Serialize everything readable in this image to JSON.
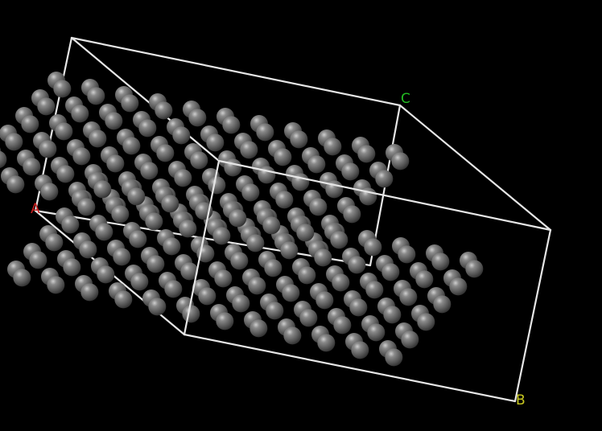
{
  "viewer": {
    "background": "#000000",
    "cell_color": "#e6e6e6",
    "atom_color": "#707070",
    "bond_color": "#6a6a6a"
  },
  "axes": {
    "a": {
      "label": "A",
      "color": "#cc1e1e"
    },
    "b": {
      "label": "B",
      "color": "#c8c820"
    },
    "c": {
      "label": "C",
      "color": "#22bb22"
    }
  }
}
